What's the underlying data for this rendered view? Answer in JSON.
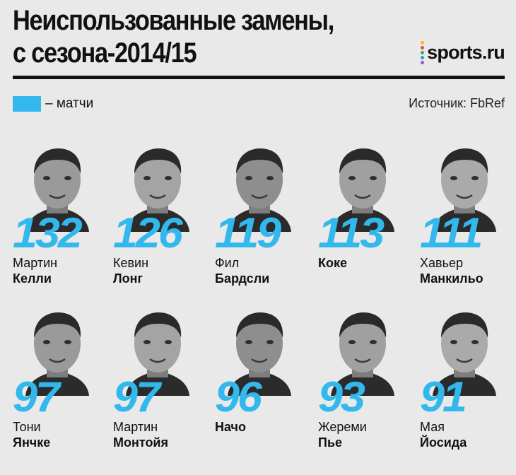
{
  "header": {
    "title_line1": "Неиспользованные замены,",
    "title_line2": "с сезона-2014/15",
    "logo_text": "sports.ru",
    "logo_dot_colors": [
      "#f5c400",
      "#e6427a",
      "#35b24a",
      "#2e9be0",
      "#8e5ec8"
    ]
  },
  "legend": {
    "label": "– матчи",
    "color": "#33b8ee"
  },
  "source": "Источник: FbRef",
  "players": [
    {
      "count": "132",
      "first": "Мартин",
      "last": "Келли"
    },
    {
      "count": "126",
      "first": "Кевин",
      "last": "Лонг"
    },
    {
      "count": "119",
      "first": "Фил",
      "last": "Бардсли"
    },
    {
      "count": "113",
      "first": "",
      "last": "Коке"
    },
    {
      "count": "111",
      "first": "Хавьер",
      "last": "Манкильо"
    },
    {
      "count": "97",
      "first": "Тони",
      "last": "Янчке"
    },
    {
      "count": "97",
      "first": "Мартин",
      "last": "Монтойя"
    },
    {
      "count": "96",
      "first": "",
      "last": "Начо"
    },
    {
      "count": "93",
      "first": "Жереми",
      "last": "Пье"
    },
    {
      "count": "91",
      "first": "Мая",
      "last": "Йосида"
    }
  ]
}
